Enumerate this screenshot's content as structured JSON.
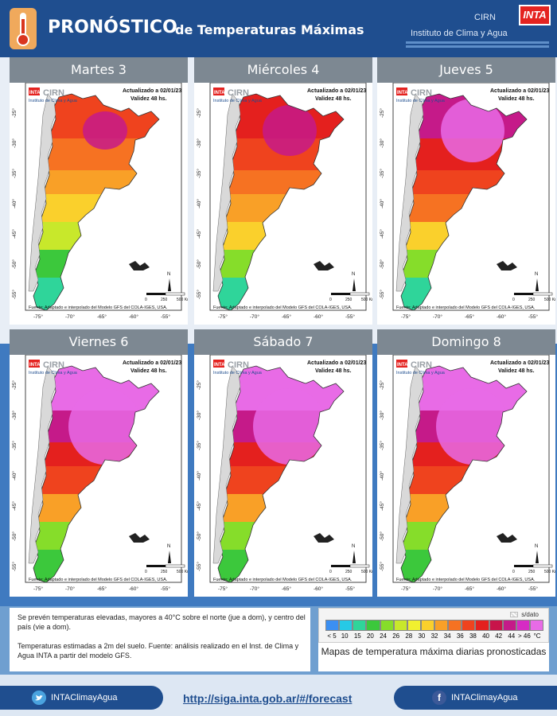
{
  "header": {
    "title_big": "PRONÓSTICO",
    "title_rest": "de Temperaturas  Máximas",
    "org_short": "CIRN",
    "org_full": "Instituto de Clima y Agua",
    "inta_logo": "INTA"
  },
  "panels": [
    {
      "day": "Martes 3",
      "updated": "Actualizado a 02/01/23",
      "validity": "Validez 48 hs.",
      "intensity": 0
    },
    {
      "day": "Miércoles 4",
      "updated": "Actualizado a 02/01/23",
      "validity": "Validez 48 hs.",
      "intensity": 1
    },
    {
      "day": "Jueves 5",
      "updated": "Actualizado a 02/01/23",
      "validity": "Validez 48 hs.",
      "intensity": 2
    },
    {
      "day": "Viernes 6",
      "updated": "Actualizado a 02/01/23",
      "validity": "Validez 48 hs.",
      "intensity": 3
    },
    {
      "day": "Sábado 7",
      "updated": "Actualizado a 02/01/23",
      "validity": "Validez 48 hs.",
      "intensity": 3
    },
    {
      "day": "Domingo 8",
      "updated": "Actualizado a 02/01/23",
      "validity": "Validez 48 hs.",
      "intensity": 3
    }
  ],
  "map_common": {
    "logo_inta": "INTA",
    "logo_cirn": "CIRN",
    "logo_sub": "Instituto de Clima y Agua",
    "source": "Fuente: Adaptado e interpolado del Modelo GFS del COLA-IGES, USA.",
    "lat_ticks": [
      "-25°",
      "-30°",
      "-35°",
      "-40°",
      "-45°",
      "-50°",
      "-55°"
    ],
    "lon_ticks": [
      "-75°",
      "-70°",
      "-65°",
      "-60°",
      "-55°"
    ],
    "north": "N",
    "scale_labels": [
      "0",
      "250",
      "500 Km"
    ]
  },
  "description": {
    "line1": "Se prevén temperaturas elevadas, mayores a 40°C sobre el norte (jue a dom), y centro del país (vie a dom).",
    "line2": "Temperaturas estimadas a 2m del suelo. Fuente: análisis realizado en el Inst. de Clima y Agua    INTA a partir del modelo GFS."
  },
  "legend": {
    "no_data_label": "s/dato",
    "ticks": [
      "< 5",
      "10",
      "15",
      "20",
      "24",
      "26",
      "28",
      "30",
      "32",
      "34",
      "36",
      "38",
      "40",
      "42",
      "44",
      "> 46",
      "°C"
    ],
    "colors": [
      "#3b8ff2",
      "#26c9e6",
      "#2fd59a",
      "#3cc83c",
      "#86dd2a",
      "#c8e82b",
      "#f1f02f",
      "#fad02c",
      "#f9a027",
      "#f67222",
      "#ef431e",
      "#e4201e",
      "#c8144a",
      "#c51a89",
      "#d62bc4",
      "#e86be6"
    ],
    "caption": "Mapas de temperatura máxima diarias pronosticadas"
  },
  "footer": {
    "twitter": "INTAClimayAgua",
    "facebook": "INTAClimayAgua",
    "url": "http://siga.inta.gob.ar/#/forecast"
  }
}
